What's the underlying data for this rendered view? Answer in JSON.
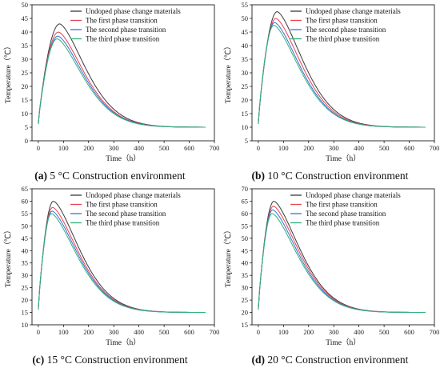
{
  "series_names": [
    "Undoped phase change materials",
    "The first phase transition",
    "The second phase transition",
    "The third phase transition"
  ],
  "series_colors": [
    "#3a3a3a",
    "#e8434f",
    "#3a6fd8",
    "#2fb27c"
  ],
  "chart_data": [
    {
      "type": "line",
      "panel_letter": "(a)",
      "caption_text": "5 °C Construction environment",
      "xlabel": "Time（h）",
      "ylabel": "Temperature（℃）",
      "xlim": [
        -25,
        700
      ],
      "ylim": [
        0,
        50
      ],
      "xticks": [
        0,
        100,
        200,
        300,
        400,
        500,
        600,
        700
      ],
      "yticks": [
        0,
        5,
        10,
        15,
        20,
        25,
        30,
        35,
        40,
        45,
        50
      ],
      "base": 5,
      "series": [
        {
          "name": "Undoped phase change materials",
          "peak_x": 85,
          "peak_y": 43
        },
        {
          "name": "The first phase transition",
          "peak_x": 80,
          "peak_y": 40
        },
        {
          "name": "The second phase transition",
          "peak_x": 78,
          "peak_y": 38.5
        },
        {
          "name": "The third phase transition",
          "peak_x": 75,
          "peak_y": 37.5
        }
      ]
    },
    {
      "type": "line",
      "panel_letter": "(b)",
      "caption_text": "10 °C Construction environment",
      "xlabel": "Time（h）",
      "ylabel": "Temperature（℃）",
      "xlim": [
        -25,
        700
      ],
      "ylim": [
        5,
        55
      ],
      "xticks": [
        0,
        100,
        200,
        300,
        400,
        500,
        600,
        700
      ],
      "yticks": [
        5,
        10,
        15,
        20,
        25,
        30,
        35,
        40,
        45,
        50,
        55
      ],
      "base": 10,
      "series": [
        {
          "name": "Undoped phase change materials",
          "peak_x": 75,
          "peak_y": 52.5
        },
        {
          "name": "The first phase transition",
          "peak_x": 70,
          "peak_y": 50
        },
        {
          "name": "The second phase transition",
          "peak_x": 65,
          "peak_y": 48.5
        },
        {
          "name": "The third phase transition",
          "peak_x": 62,
          "peak_y": 47.5
        }
      ]
    },
    {
      "type": "line",
      "panel_letter": "(c)",
      "caption_text": "15 °C Construction environment",
      "xlabel": "Time（h）",
      "ylabel": "Temperature（℃）",
      "xlim": [
        -25,
        700
      ],
      "ylim": [
        10,
        65
      ],
      "xticks": [
        0,
        100,
        200,
        300,
        400,
        500,
        600,
        700
      ],
      "yticks": [
        10,
        15,
        20,
        25,
        30,
        35,
        40,
        45,
        50,
        55,
        60,
        65
      ],
      "base": 15,
      "series": [
        {
          "name": "Undoped phase change materials",
          "peak_x": 60,
          "peak_y": 60
        },
        {
          "name": "The first phase transition",
          "peak_x": 57,
          "peak_y": 57.5
        },
        {
          "name": "The second phase transition",
          "peak_x": 55,
          "peak_y": 56
        },
        {
          "name": "The third phase transition",
          "peak_x": 52,
          "peak_y": 55
        }
      ]
    },
    {
      "type": "line",
      "panel_letter": "(d)",
      "caption_text": "20 °C Construction environment",
      "xlabel": "Time（h）",
      "ylabel": "Temperature（℃）",
      "xlim": [
        -25,
        700
      ],
      "ylim": [
        15,
        70
      ],
      "xticks": [
        0,
        100,
        200,
        300,
        400,
        500,
        600,
        700
      ],
      "yticks": [
        15,
        20,
        25,
        30,
        35,
        40,
        45,
        50,
        55,
        60,
        65,
        70
      ],
      "base": 20,
      "series": [
        {
          "name": "Undoped phase change materials",
          "peak_x": 62,
          "peak_y": 65
        },
        {
          "name": "The first phase transition",
          "peak_x": 60,
          "peak_y": 63
        },
        {
          "name": "The second phase transition",
          "peak_x": 57,
          "peak_y": 61.5
        },
        {
          "name": "The third phase transition",
          "peak_x": 55,
          "peak_y": 60
        }
      ]
    }
  ]
}
